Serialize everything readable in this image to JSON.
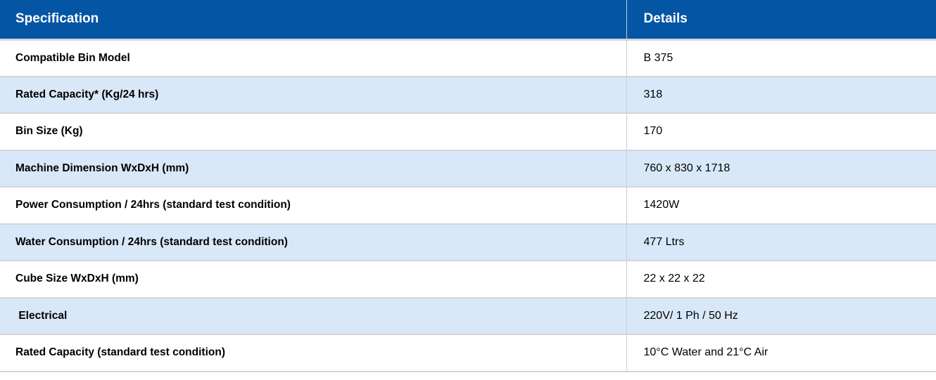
{
  "theme": {
    "header_bg": "#0455a4",
    "header_text": "#ffffff",
    "row_bg": "#ffffff",
    "row_alt_bg": "#d9e8f8",
    "border": "#d2d6da",
    "text": "#000000"
  },
  "table": {
    "columns": [
      {
        "label": "Specification"
      },
      {
        "label": "Details"
      }
    ],
    "rows": [
      {
        "spec": "Compatible Bin Model",
        "detail": "B 375"
      },
      {
        "spec": "Rated Capacity* (Kg/24 hrs)",
        "detail": "318"
      },
      {
        "spec": "Bin Size (Kg)",
        "detail": "170"
      },
      {
        "spec": "Machine Dimension WxDxH (mm)",
        "detail": "760 x 830 x 1718"
      },
      {
        "spec": "Power Consumption / 24hrs (standard test condition)",
        "detail": "1420W"
      },
      {
        "spec": "Water Consumption / 24hrs (standard test condition)",
        "detail": "477 Ltrs"
      },
      {
        "spec": "Cube Size WxDxH (mm)",
        "detail": "22 x 22 x 22"
      },
      {
        "spec": " Electrical",
        "detail": "220V/ 1 Ph / 50 Hz"
      },
      {
        "spec": "Rated Capacity (standard test condition)",
        "detail": "10°C Water and 21°C Air"
      }
    ]
  }
}
